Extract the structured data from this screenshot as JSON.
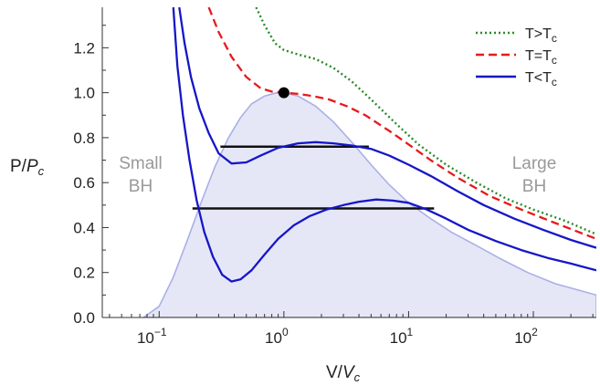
{
  "chart_data": {
    "type": "line",
    "xscale": "log",
    "xlim": [
      0.035,
      320
    ],
    "ylim": [
      0,
      1.38
    ],
    "xlabel": "V/V_c",
    "ylabel": "P/P_c",
    "x_ticks": [
      {
        "value": 0.1,
        "base": "10",
        "exp": "−1"
      },
      {
        "value": 1,
        "base": "10",
        "exp": "0"
      },
      {
        "value": 10,
        "base": "10",
        "exp": "1"
      },
      {
        "value": 100,
        "base": "10",
        "exp": "2"
      }
    ],
    "y_ticks": [
      "0.0",
      "0.2",
      "0.4",
      "0.6",
      "0.8",
      "1.0",
      "1.2"
    ],
    "legend": {
      "position": "top-right",
      "entries": [
        {
          "text": "T>T",
          "sub": "c",
          "style": "dotted",
          "color": "#2a8a2a"
        },
        {
          "text": "T=T",
          "sub": "c",
          "style": "dashed",
          "color": "#e8191c"
        },
        {
          "text": "T<T",
          "sub": "c",
          "style": "solid",
          "color": "#1616c8"
        }
      ]
    },
    "region_labels": {
      "small": [
        "Small",
        "BH"
      ],
      "large": [
        "Large",
        "BH"
      ]
    },
    "critical_point": {
      "x": 1.0,
      "y": 1.0
    },
    "coexistence_lines": [
      {
        "x1": 0.31,
        "x2": 4.8,
        "y": 0.76
      },
      {
        "x1": 0.185,
        "x2": 16,
        "y": 0.485
      }
    ],
    "series": [
      {
        "style": "dotted",
        "color": "#2a8a2a",
        "x": [
          0.6,
          0.7,
          0.85,
          1.0,
          1.3,
          1.8,
          2.5,
          3.5,
          5,
          8,
          12,
          20,
          35,
          60,
          100,
          180,
          320
        ],
        "y": [
          1.38,
          1.3,
          1.22,
          1.19,
          1.17,
          1.15,
          1.11,
          1.05,
          0.97,
          0.86,
          0.77,
          0.68,
          0.6,
          0.53,
          0.48,
          0.43,
          0.37
        ]
      },
      {
        "style": "dashed",
        "color": "#e8191c",
        "x": [
          0.25,
          0.3,
          0.38,
          0.5,
          0.65,
          0.8,
          1.0,
          1.3,
          1.7,
          2.3,
          3.2,
          4.5,
          7,
          10,
          15,
          25,
          45,
          80,
          150,
          320
        ],
        "y": [
          1.38,
          1.27,
          1.16,
          1.07,
          1.02,
          1.005,
          1.0,
          0.995,
          0.985,
          0.97,
          0.94,
          0.9,
          0.83,
          0.77,
          0.7,
          0.62,
          0.54,
          0.48,
          0.42,
          0.35
        ]
      },
      {
        "style": "solid",
        "color": "#1616c8",
        "x": [
          0.145,
          0.16,
          0.18,
          0.21,
          0.25,
          0.3,
          0.38,
          0.5,
          0.65,
          0.9,
          1.3,
          1.8,
          2.5,
          3.5,
          5,
          7,
          10,
          15,
          25,
          40,
          70,
          120,
          200,
          320
        ],
        "y": [
          1.38,
          1.22,
          1.07,
          0.93,
          0.82,
          0.73,
          0.685,
          0.69,
          0.72,
          0.755,
          0.775,
          0.78,
          0.775,
          0.765,
          0.75,
          0.72,
          0.68,
          0.63,
          0.56,
          0.5,
          0.44,
          0.39,
          0.345,
          0.31
        ]
      },
      {
        "style": "solid",
        "color": "#1616c8",
        "x": [
          0.13,
          0.14,
          0.155,
          0.175,
          0.2,
          0.23,
          0.27,
          0.32,
          0.38,
          0.45,
          0.55,
          0.7,
          0.9,
          1.2,
          1.6,
          2.2,
          3.0,
          4.0,
          5.5,
          7.5,
          10,
          14,
          20,
          30,
          50,
          80,
          130,
          200,
          320
        ],
        "y": [
          1.38,
          1.12,
          0.9,
          0.7,
          0.52,
          0.38,
          0.27,
          0.19,
          0.16,
          0.17,
          0.21,
          0.28,
          0.35,
          0.41,
          0.45,
          0.48,
          0.5,
          0.515,
          0.525,
          0.52,
          0.51,
          0.48,
          0.44,
          0.39,
          0.34,
          0.3,
          0.265,
          0.24,
          0.21
        ]
      }
    ],
    "coexistence_region": {
      "color": "#aab0e6",
      "x": [
        0.075,
        0.1,
        0.13,
        0.17,
        0.22,
        0.28,
        0.36,
        0.45,
        0.55,
        0.7,
        0.85,
        1.0,
        1.3,
        1.8,
        2.5,
        3.5,
        5,
        7,
        10,
        15,
        22,
        35,
        55,
        90,
        150,
        320
      ],
      "y": [
        0,
        0.05,
        0.18,
        0.35,
        0.52,
        0.67,
        0.8,
        0.89,
        0.95,
        0.985,
        0.998,
        1.0,
        0.985,
        0.94,
        0.87,
        0.78,
        0.68,
        0.59,
        0.51,
        0.44,
        0.38,
        0.32,
        0.26,
        0.2,
        0.15,
        0.1
      ]
    }
  }
}
